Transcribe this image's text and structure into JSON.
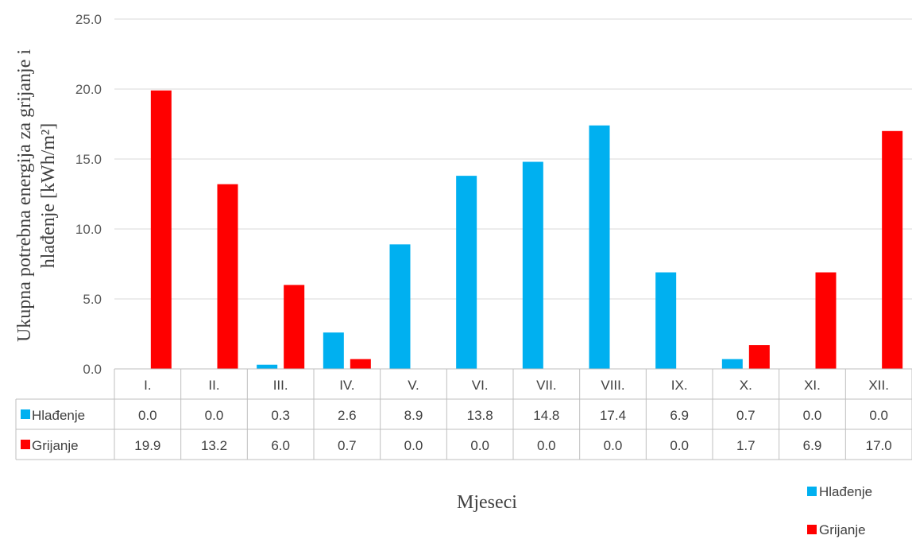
{
  "chart_data": {
    "type": "bar",
    "title": "",
    "xlabel": "Mjeseci",
    "ylabel_line1": "Ukupna potrebna energija za grijanje i",
    "ylabel_line2": "hlađenje  [kWh/m²]",
    "ylim": [
      0,
      25
    ],
    "yticks": [
      "0.0",
      "5.0",
      "10.0",
      "15.0",
      "20.0",
      "25.0"
    ],
    "grid": true,
    "legend_position": "bottom-right",
    "categories": [
      "I.",
      "II.",
      "III.",
      "IV.",
      "V.",
      "VI.",
      "VII.",
      "VIII.",
      "IX.",
      "X.",
      "XI.",
      "XII."
    ],
    "series": [
      {
        "name": "Hlađenje",
        "color": "#00b0f0",
        "values": [
          0.0,
          0.0,
          0.3,
          2.6,
          8.9,
          13.8,
          14.8,
          17.4,
          6.9,
          0.7,
          0.0,
          0.0
        ],
        "labels": [
          "0.0",
          "0.0",
          "0.3",
          "2.6",
          "8.9",
          "13.8",
          "14.8",
          "17.4",
          "6.9",
          "0.7",
          "0.0",
          "0.0"
        ]
      },
      {
        "name": "Grijanje",
        "color": "#ff0000",
        "values": [
          19.9,
          13.2,
          6.0,
          0.7,
          0.0,
          0.0,
          0.0,
          0.0,
          0.0,
          1.7,
          6.9,
          17.0
        ],
        "labels": [
          "19.9",
          "13.2",
          "6.0",
          "0.7",
          "0.0",
          "0.0",
          "0.0",
          "0.0",
          "0.0",
          "1.7",
          "6.9",
          "17.0"
        ]
      }
    ]
  }
}
